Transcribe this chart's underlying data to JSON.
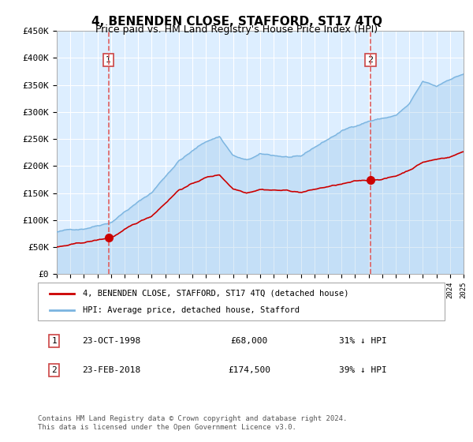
{
  "title": "4, BENENDEN CLOSE, STAFFORD, ST17 4TQ",
  "subtitle": "Price paid vs. HM Land Registry's House Price Index (HPI)",
  "x_start_year": 1995,
  "x_end_year": 2025,
  "y_min": 0,
  "y_max": 450000,
  "y_ticks": [
    0,
    50000,
    100000,
    150000,
    200000,
    250000,
    300000,
    350000,
    400000,
    450000
  ],
  "y_tick_labels": [
    "£0",
    "£50K",
    "£100K",
    "£150K",
    "£200K",
    "£250K",
    "£300K",
    "£350K",
    "£400K",
    "£450K"
  ],
  "sale1_date": "23-OCT-1998",
  "sale1_price": 68000,
  "sale1_year": 1998.81,
  "sale2_date": "23-FEB-2018",
  "sale2_price": 174500,
  "sale2_year": 2018.14,
  "hpi_color": "#7ab4e0",
  "price_color": "#cc0000",
  "vline_color": "#e06060",
  "bg_color": "#ddeeff",
  "plot_bg": "#ddeeff",
  "legend_label1": "4, BENENDEN CLOSE, STAFFORD, ST17 4TQ (detached house)",
  "legend_label2": "HPI: Average price, detached house, Stafford",
  "annotation1": "1",
  "annotation2": "2",
  "footer": "Contains HM Land Registry data © Crown copyright and database right 2024.\nThis data is licensed under the Open Government Licence v3.0.",
  "table_row1": [
    "1",
    "23-OCT-1998",
    "£68,000",
    "31% ↓ HPI"
  ],
  "table_row2": [
    "2",
    "23-FEB-2018",
    "£174,500",
    "39% ↓ HPI"
  ]
}
